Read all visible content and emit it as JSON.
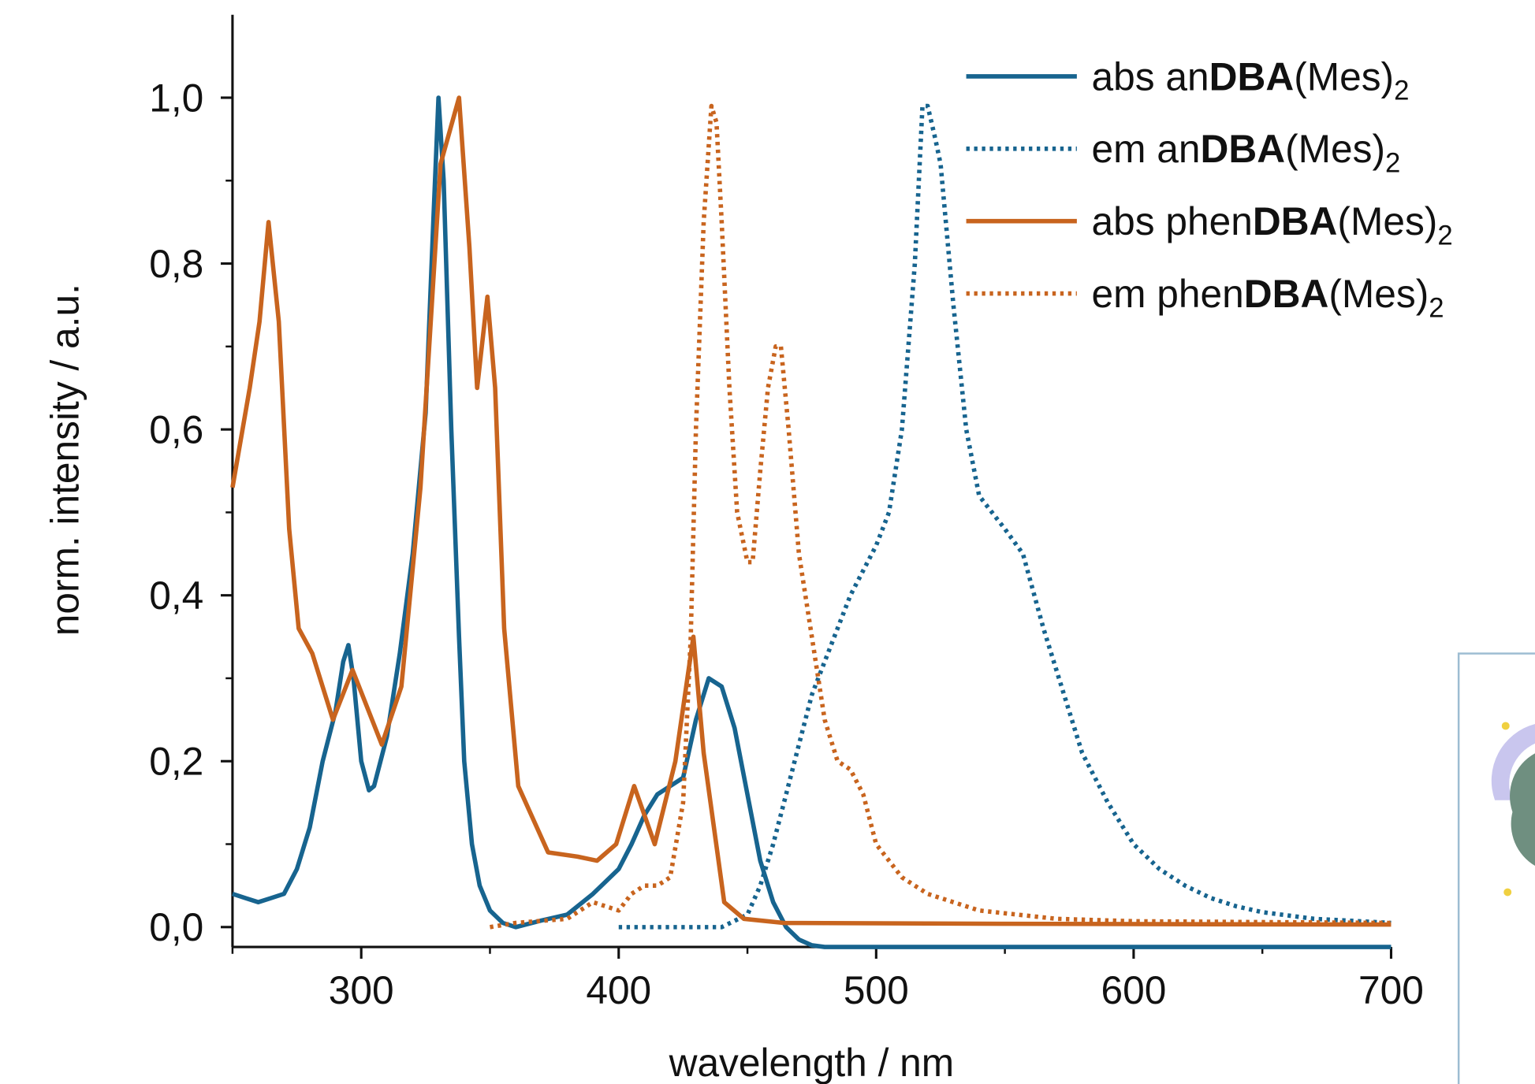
{
  "chart_data": {
    "type": "line",
    "x_label": "wavelength / nm",
    "y_label": "norm. intensity / a.u.",
    "xlim": [
      250,
      700
    ],
    "ylim": [
      -0.024,
      1.1
    ],
    "xticks": [
      300,
      400,
      500,
      600,
      700
    ],
    "xminorticks": [
      250,
      350,
      450,
      550,
      650
    ],
    "yticks": [
      {
        "value": 0,
        "label": "0,0"
      },
      {
        "value": 0.2,
        "label": "0,2"
      },
      {
        "value": 0.4,
        "label": "0,4"
      },
      {
        "value": 0.6,
        "label": "0,6"
      },
      {
        "value": 0.8,
        "label": "0,8"
      },
      {
        "value": 1.0,
        "label": "1,0"
      }
    ],
    "yminorticks": [
      0.1,
      0.3,
      0.5,
      0.7,
      0.9
    ],
    "series": [
      {
        "name": [
          {
            "text": "abs an"
          },
          {
            "text": "DBA",
            "bold": true
          },
          {
            "text": "(Mes)"
          },
          {
            "text": "2",
            "sub": true
          }
        ],
        "color": "#17648f",
        "linestyle": "solid",
        "x": [
          250,
          255,
          260,
          265,
          270,
          275,
          280,
          285,
          290,
          293,
          295,
          297,
          300,
          303,
          305,
          310,
          315,
          320,
          325,
          328,
          330,
          332,
          335,
          338,
          340,
          343,
          346,
          350,
          355,
          360,
          370,
          380,
          390,
          400,
          405,
          410,
          415,
          420,
          425,
          430,
          435,
          440,
          445,
          450,
          455,
          460,
          465,
          470,
          475,
          480,
          500,
          600,
          700
        ],
        "values": [
          0.04,
          0.035,
          0.03,
          0.035,
          0.04,
          0.07,
          0.12,
          0.2,
          0.26,
          0.32,
          0.34,
          0.3,
          0.2,
          0.165,
          0.17,
          0.23,
          0.33,
          0.45,
          0.62,
          0.85,
          1.0,
          0.9,
          0.6,
          0.35,
          0.2,
          0.1,
          0.05,
          0.02,
          0.005,
          0.0,
          0.008,
          0.015,
          0.04,
          0.07,
          0.1,
          0.135,
          0.16,
          0.17,
          0.18,
          0.25,
          0.3,
          0.29,
          0.24,
          0.16,
          0.08,
          0.03,
          0.0,
          -0.015,
          -0.022,
          -0.024,
          -0.024,
          -0.024,
          -0.024
        ]
      },
      {
        "name": [
          {
            "text": "em an"
          },
          {
            "text": "DBA",
            "bold": true
          },
          {
            "text": "(Mes)"
          },
          {
            "text": "2",
            "sub": true
          }
        ],
        "color": "#17648f",
        "linestyle": "dotted",
        "x": [
          400,
          440,
          450,
          455,
          460,
          465,
          470,
          475,
          480,
          490,
          495,
          500,
          505,
          510,
          515,
          518,
          520,
          523,
          525,
          530,
          535,
          540,
          550,
          557,
          565,
          580,
          590,
          600,
          610,
          620,
          630,
          640,
          650,
          670,
          700
        ],
        "values": [
          0,
          0,
          0.015,
          0.05,
          0.1,
          0.16,
          0.22,
          0.28,
          0.32,
          0.4,
          0.43,
          0.46,
          0.5,
          0.6,
          0.8,
          0.99,
          0.99,
          0.95,
          0.92,
          0.75,
          0.6,
          0.52,
          0.48,
          0.45,
          0.36,
          0.21,
          0.15,
          0.1,
          0.07,
          0.05,
          0.035,
          0.025,
          0.018,
          0.01,
          0.005
        ]
      },
      {
        "name": [
          {
            "text": "abs phen"
          },
          {
            "text": "DBA",
            "bold": true
          },
          {
            "text": "(Mes)"
          },
          {
            "text": "2",
            "sub": true
          }
        ],
        "color": "#c8641e",
        "linestyle": "solid",
        "x": [
          250,
          256.7,
          260.5,
          264,
          268,
          272,
          275.7,
          281,
          289,
          296.6,
          308,
          315.6,
          323,
          330.8,
          338,
          342,
          345,
          349,
          352,
          355.5,
          361,
          372.6,
          384,
          391.6,
          399,
          406,
          414,
          422,
          429,
          433,
          441,
          448.6,
          464,
          550,
          700
        ],
        "values": [
          0.53,
          0.65,
          0.73,
          0.85,
          0.73,
          0.48,
          0.36,
          0.33,
          0.25,
          0.31,
          0.22,
          0.29,
          0.53,
          0.92,
          1.0,
          0.82,
          0.65,
          0.76,
          0.65,
          0.36,
          0.17,
          0.09,
          0.085,
          0.08,
          0.1,
          0.17,
          0.1,
          0.2,
          0.35,
          0.21,
          0.03,
          0.01,
          0.005,
          0.004,
          0.003
        ]
      },
      {
        "name": [
          {
            "text": "em phen"
          },
          {
            "text": "DBA",
            "bold": true
          },
          {
            "text": "(Mes)"
          },
          {
            "text": "2",
            "sub": true
          }
        ],
        "color": "#c8641e",
        "linestyle": "dotted",
        "x": [
          350,
          360,
          380,
          390,
          400,
          405,
          410,
          415,
          420,
          425,
          428,
          430,
          433,
          436,
          438,
          440,
          443,
          446,
          450,
          452,
          455,
          458,
          461,
          463,
          466,
          470,
          475,
          480,
          485,
          490,
          495,
          500,
          510,
          520,
          540,
          570,
          600,
          700
        ],
        "values": [
          0,
          0.005,
          0.01,
          0.03,
          0.02,
          0.04,
          0.05,
          0.05,
          0.06,
          0.15,
          0.35,
          0.6,
          0.85,
          0.99,
          0.97,
          0.85,
          0.65,
          0.5,
          0.44,
          0.44,
          0.55,
          0.65,
          0.7,
          0.7,
          0.6,
          0.45,
          0.35,
          0.25,
          0.2,
          0.19,
          0.16,
          0.1,
          0.06,
          0.04,
          0.02,
          0.01,
          0.007,
          0.005
        ]
      }
    ]
  }
}
